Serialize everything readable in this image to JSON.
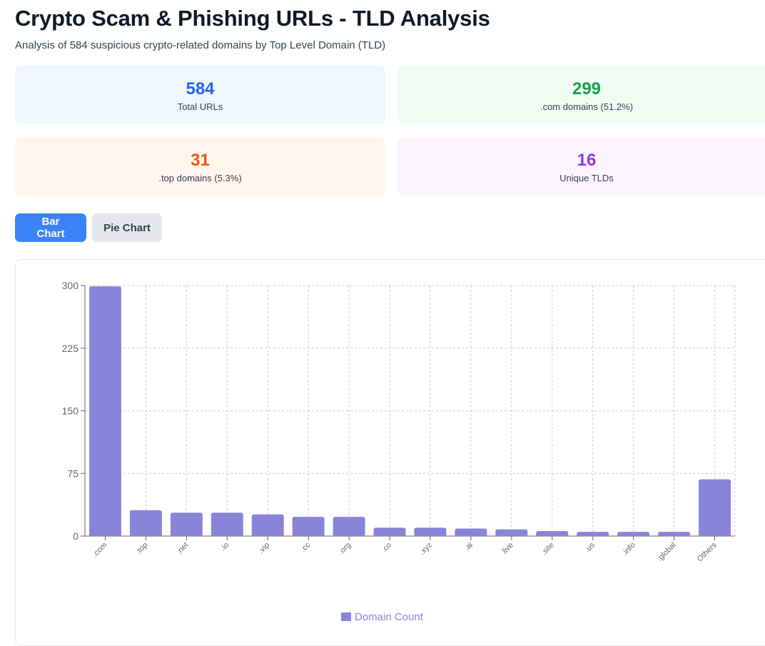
{
  "header": {
    "title": "Crypto Scam & Phishing URLs - TLD Analysis",
    "subtitle": "Analysis of 584 suspicious crypto-related domains by Top Level Domain (TLD)"
  },
  "stats": [
    {
      "value": "584",
      "label": "Total URLs",
      "color": "#2563eb"
    },
    {
      "value": "299",
      "label": ".com domains (51.2%)",
      "color": "#16a34a"
    },
    {
      "value": "31",
      "label": ".top domains (5.3%)",
      "color": "#ea580c"
    },
    {
      "value": "16",
      "label": "Unique TLDs",
      "color": "#9333ea"
    }
  ],
  "toggle": {
    "bar_label": "Bar Chart",
    "pie_label": "Pie Chart",
    "active": "bar"
  },
  "chart_data": {
    "type": "bar",
    "categories": [
      ".com",
      ".top",
      ".net",
      ".io",
      ".vip",
      ".cc",
      ".org",
      ".co",
      ".xyz",
      ".ai",
      ".live",
      ".site",
      ".us",
      ".info",
      ".global",
      "Others"
    ],
    "series": [
      {
        "name": "Domain Count",
        "values": [
          299,
          31,
          28,
          28,
          26,
          23,
          23,
          10,
          10,
          9,
          8,
          6,
          5,
          5,
          5,
          68
        ],
        "color": "#8884d8"
      }
    ],
    "ylim": [
      0,
      300
    ],
    "yticks": [
      0,
      75,
      150,
      225,
      300
    ],
    "grid": true,
    "legend": "bottom-center",
    "xlabel": "",
    "ylabel": ""
  }
}
